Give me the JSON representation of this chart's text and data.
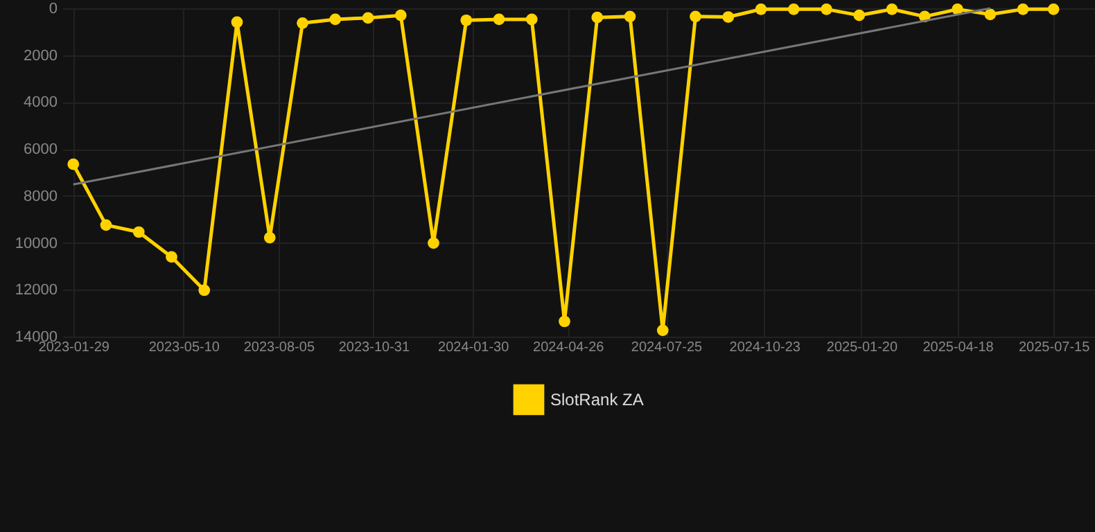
{
  "chart_data": {
    "type": "line",
    "x": [
      "2023-01-29",
      "2023-02-28",
      "2023-03-30",
      "2023-04-29",
      "2023-05-29",
      "2023-06-28",
      "2023-07-28",
      "2023-08-27",
      "2023-09-26",
      "2023-10-26",
      "2023-11-25",
      "2023-12-25",
      "2024-01-24",
      "2024-02-23",
      "2024-03-24",
      "2024-04-23",
      "2024-05-23",
      "2024-06-22",
      "2024-07-22",
      "2024-08-21",
      "2024-09-20",
      "2024-10-20",
      "2024-11-19",
      "2024-12-19",
      "2025-01-18",
      "2025-02-17",
      "2025-03-19",
      "2025-04-18",
      "2025-05-18",
      "2025-06-17",
      "2025-07-15"
    ],
    "series": [
      {
        "name": "SlotRank ZA",
        "color": "#ffd200",
        "values": [
          6650,
          9240,
          9540,
          10600,
          12020,
          590,
          9780,
          630,
          470,
          410,
          300,
          10010,
          510,
          470,
          470,
          13350,
          390,
          350,
          13730,
          350,
          370,
          40,
          40,
          40,
          300,
          40,
          350,
          40,
          260,
          40,
          40
        ]
      },
      {
        "type": "line",
        "color": "#777777",
        "x": [
          "2023-01-29",
          "2025-05-18"
        ],
        "values": [
          7510,
          0
        ],
        "marker": "none"
      }
    ],
    "xlim": [
      "2023-01-19",
      "2025-08-22"
    ],
    "ylim": [
      14000,
      0
    ],
    "xticks": [
      "2023-01-29",
      "2023-05-10",
      "2023-08-05",
      "2023-10-31",
      "2024-01-30",
      "2024-04-26",
      "2024-07-25",
      "2024-10-23",
      "2025-01-20",
      "2025-04-18",
      "2025-07-15"
    ],
    "yticks": [
      0,
      2000,
      4000,
      6000,
      8000,
      10000,
      12000,
      14000
    ],
    "grid": true,
    "legend": "bottom",
    "marker": "circle",
    "line_style": "solid"
  }
}
